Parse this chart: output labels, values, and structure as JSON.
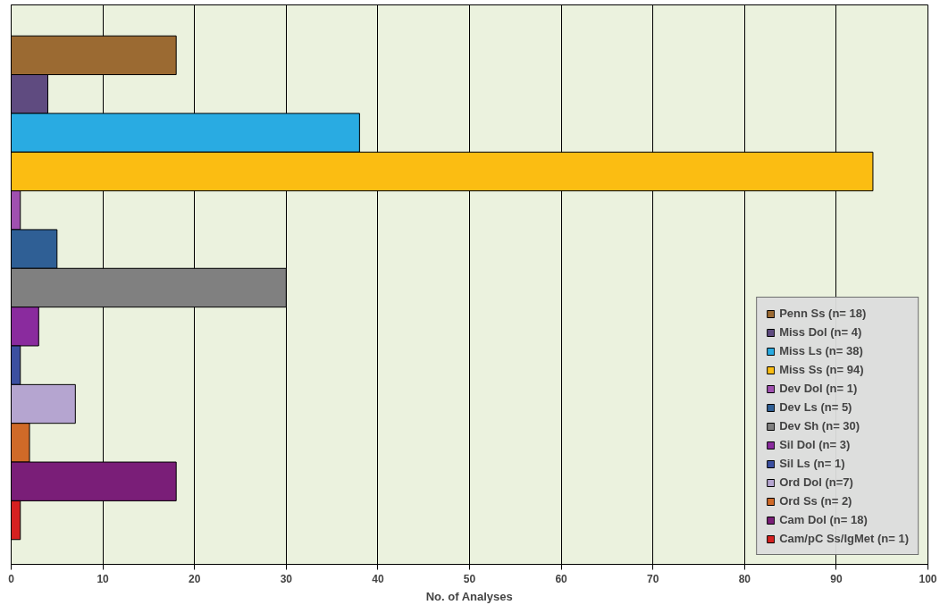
{
  "chart_data": {
    "type": "bar",
    "orientation": "horizontal",
    "xlabel": "No. of Analyses",
    "categories": [
      null
    ],
    "series": [
      {
        "name": "Penn Ss (n= 18)",
        "color": "#9b6a32",
        "values": [
          18
        ]
      },
      {
        "name": "Miss Dol (n= 4)",
        "color": "#5f4b80",
        "values": [
          4
        ]
      },
      {
        "name": "Miss Ls (n= 38)",
        "color": "#29abe2",
        "values": [
          38
        ]
      },
      {
        "name": "Miss Ss (n= 94)",
        "color": "#fbbd12",
        "values": [
          94
        ]
      },
      {
        "name": "Dev Dol (n= 1)",
        "color": "#a050b0",
        "values": [
          1
        ]
      },
      {
        "name": "Dev Ls (n= 5)",
        "color": "#2f5f95",
        "values": [
          5
        ]
      },
      {
        "name": "Dev Sh (n= 30)",
        "color": "#808080",
        "values": [
          30
        ]
      },
      {
        "name": "Sil Dol (n= 3)",
        "color": "#8a2b9e",
        "values": [
          3
        ]
      },
      {
        "name": "Sil Ls (n= 1)",
        "color": "#3b4fa0",
        "values": [
          1
        ]
      },
      {
        "name": "Ord Dol (n=7)",
        "color": "#b5a5d0",
        "values": [
          7
        ]
      },
      {
        "name": "Ord Ss (n= 2)",
        "color": "#d06a28",
        "values": [
          2
        ]
      },
      {
        "name": "Cam Dol (n= 18)",
        "color": "#7a1e78",
        "values": [
          18
        ]
      },
      {
        "name": "Cam/pC Ss/IgMet (n= 1)",
        "color": "#d62020",
        "values": [
          1
        ]
      }
    ],
    "xlim": [
      0,
      100
    ],
    "xticks": [
      0,
      10,
      20,
      30,
      40,
      50,
      60,
      70,
      80,
      90,
      100
    ],
    "grid": "x",
    "legend": "bottom right",
    "tick_labels": "x"
  }
}
